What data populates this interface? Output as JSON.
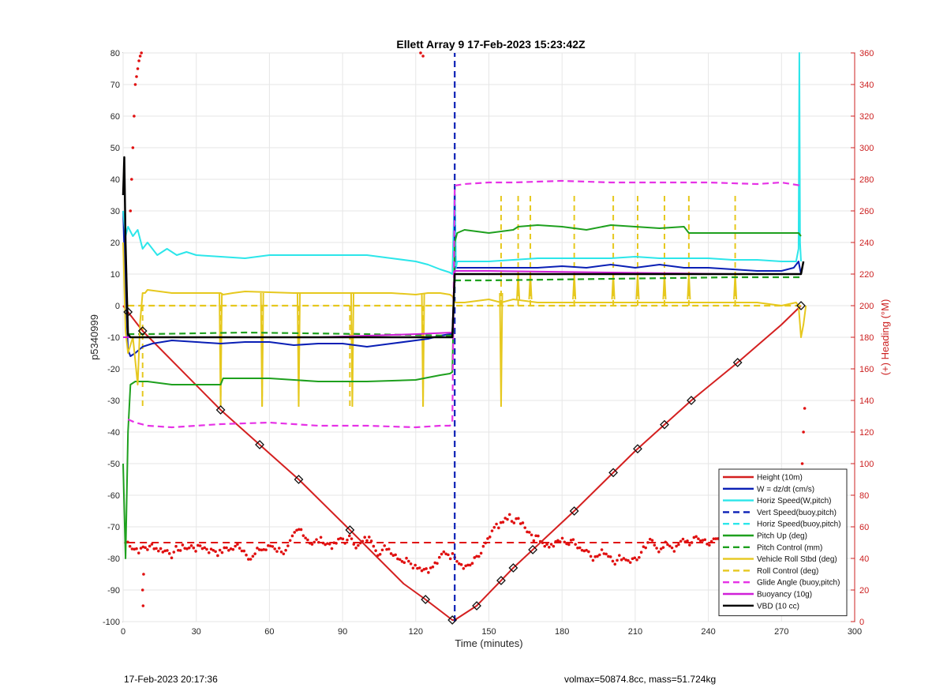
{
  "footer": {
    "left": "17-Feb-2023 20:17:36",
    "right": "volmax=50874.8cc, mass=51.724kg"
  },
  "chart_data": {
    "type": "line",
    "title": "Ellett Array 9 17-Feb-2023 15:23:42Z",
    "xlabel": "Time (minutes)",
    "ylabel": "p5340999",
    "y2label": "(+) Heading (°M)",
    "xlim": [
      0,
      300
    ],
    "ylim": [
      -100,
      80
    ],
    "y2lim": [
      0,
      360
    ],
    "xticks": [
      0,
      30,
      60,
      90,
      120,
      150,
      180,
      210,
      240,
      270,
      300
    ],
    "yticks": [
      -100,
      -90,
      -80,
      -70,
      -60,
      -50,
      -40,
      -30,
      -20,
      -10,
      0,
      10,
      20,
      30,
      40,
      50,
      60,
      70,
      80
    ],
    "y2ticks": [
      0,
      20,
      40,
      60,
      80,
      100,
      120,
      140,
      160,
      180,
      200,
      220,
      240,
      260,
      280,
      300,
      320,
      340,
      360
    ],
    "grid": true,
    "legend_position": "bottom-right",
    "colors": {
      "height": "#d42020",
      "w": "#0a1fb5",
      "horiz": "#2ce6ea",
      "pitch": "#1ea01e",
      "roll": "#e6c81e",
      "glide": "#e632e6",
      "buoy": "#d020d8",
      "vbd": "#000000",
      "heading": "#e01010"
    },
    "series": [
      {
        "name": "Height (10m)",
        "key": "height",
        "style": "solid",
        "width": 2,
        "x": [
          0,
          2,
          8,
          40,
          56,
          72,
          93,
          115,
          124,
          135,
          136,
          145,
          160,
          185,
          210,
          233,
          252,
          270,
          278
        ],
        "y": [
          0,
          -2,
          -8,
          -33,
          -44,
          -55,
          -71,
          -88,
          -93,
          -99.5,
          -99.5,
          -95,
          -83,
          -65,
          -46,
          -30,
          -18,
          -6,
          0
        ]
      },
      {
        "name": "W = dz/dt (cm/s)",
        "key": "w",
        "style": "solid",
        "width": 2,
        "x": [
          0,
          1,
          2,
          3,
          5,
          8,
          12,
          20,
          30,
          40,
          50,
          60,
          70,
          80,
          90,
          100,
          110,
          120,
          125,
          130,
          134,
          135,
          136,
          140,
          150,
          160,
          170,
          180,
          190,
          200,
          210,
          220,
          230,
          240,
          250,
          260,
          270,
          275,
          277,
          278
        ],
        "y": [
          30,
          5,
          -14,
          -16,
          -15,
          -13,
          -12,
          -11,
          -11.5,
          -12,
          -11.5,
          -11.5,
          -12.5,
          -12,
          -12,
          -13,
          -12,
          -11,
          -10.5,
          -9.5,
          -9,
          -9,
          12,
          12,
          12,
          12,
          12,
          12.5,
          12,
          13,
          12,
          13,
          12,
          12,
          11.5,
          11,
          11,
          12,
          14,
          10
        ]
      },
      {
        "name": "Horiz Speed(W,pitch)",
        "key": "horiz",
        "style": "solid",
        "width": 2,
        "x": [
          0,
          1,
          2,
          4,
          6,
          8,
          10,
          14,
          18,
          22,
          26,
          30,
          40,
          50,
          60,
          70,
          80,
          90,
          100,
          110,
          120,
          125,
          130,
          134,
          135,
          136,
          136.5,
          137,
          140,
          150,
          160,
          170,
          180,
          190,
          200,
          210,
          220,
          230,
          240,
          250,
          260,
          270,
          276,
          277,
          277.3,
          277.6,
          278
        ],
        "y": [
          30,
          22,
          25,
          22,
          24,
          18,
          20,
          16,
          18,
          16,
          17,
          16,
          15.5,
          15,
          16,
          16,
          16,
          16,
          16,
          15,
          14,
          13,
          11.5,
          10.5,
          10,
          38,
          12,
          14,
          14,
          14,
          14.5,
          15,
          15,
          15,
          15,
          15.5,
          15,
          15,
          15,
          14.5,
          14.5,
          14,
          14,
          18,
          80,
          20,
          14
        ]
      },
      {
        "name": "Vert Speed(buoy,pitch)",
        "key": "w",
        "style": "dashed",
        "width": 2.2,
        "x": [
          136,
          136
        ],
        "y": [
          -100,
          80
        ]
      },
      {
        "name": "Horiz Speed(buoy,pitch)",
        "key": "horiz",
        "style": "dashed",
        "width": 2.2,
        "x": [
          278,
          278
        ],
        "y": [
          80,
          80
        ]
      },
      {
        "name": "Pitch Up (deg)",
        "key": "pitch",
        "style": "solid",
        "width": 2,
        "x": [
          0,
          1,
          2,
          3,
          5,
          10,
          20,
          40,
          41,
          60,
          80,
          100,
          120,
          130,
          134,
          135,
          136,
          137,
          140,
          150,
          160,
          162,
          170,
          180,
          190,
          200,
          210,
          220,
          230,
          232,
          240,
          250,
          260,
          270,
          277,
          278
        ],
        "y": [
          -50,
          -80,
          -40,
          -25,
          -24,
          -24,
          -25,
          -25,
          -23,
          -23,
          -24,
          -24,
          -23.5,
          -22,
          -21.5,
          -21,
          20,
          23,
          24,
          23,
          24,
          25,
          25.5,
          25,
          24,
          25.5,
          25,
          24.5,
          25,
          23,
          23,
          23,
          23,
          23,
          23,
          22
        ]
      },
      {
        "name": "Pitch Control (mm)",
        "key": "pitch",
        "style": "dashed",
        "width": 2.2,
        "x": [
          2,
          10,
          50,
          100,
          134,
          135,
          136,
          150,
          200,
          250,
          278
        ],
        "y": [
          -9,
          -9,
          -8.5,
          -9,
          -9.5,
          -9.5,
          8,
          8,
          8.5,
          9,
          9
        ]
      },
      {
        "name": "Vehicle Roll Stbd (deg)",
        "key": "roll",
        "style": "solid",
        "width": 2,
        "x": [
          0,
          1,
          2,
          4,
          6,
          7,
          8,
          9,
          10,
          20,
          30,
          40,
          41,
          45,
          50,
          70,
          90,
          110,
          120,
          125,
          130,
          134,
          135,
          136,
          140,
          150,
          155,
          160,
          170,
          200,
          230,
          260,
          270,
          276,
          277,
          278,
          279,
          280
        ],
        "y": [
          20,
          -8,
          -15,
          -10,
          -25,
          -5,
          4,
          4,
          5,
          4,
          4,
          4,
          3.5,
          4,
          4.5,
          4,
          4,
          4,
          3.5,
          4,
          4,
          3.5,
          3,
          1,
          1,
          2,
          1,
          2,
          1,
          1,
          1,
          1,
          0,
          1,
          0,
          -10,
          -6,
          0
        ]
      },
      {
        "name": "Roll Control (deg)",
        "key": "roll",
        "style": "dashed",
        "width": 2.2,
        "x": [
          2,
          10,
          50,
          100,
          130,
          135,
          136,
          150,
          200,
          250,
          278
        ],
        "y": [
          0,
          0,
          0,
          0,
          0,
          0,
          0,
          0,
          0,
          0,
          0
        ]
      },
      {
        "name": "Glide Angle (buoy,pitch)",
        "key": "glide",
        "style": "dashed",
        "width": 2.2,
        "x": [
          2,
          5,
          10,
          20,
          30,
          40,
          60,
          80,
          100,
          120,
          130,
          134,
          135,
          136,
          140,
          150,
          160,
          180,
          200,
          220,
          240,
          260,
          270,
          278
        ],
        "y": [
          -36,
          -37,
          -38,
          -38.5,
          -38,
          -37.5,
          -37,
          -38,
          -38,
          -38.5,
          -38,
          -38,
          -37,
          38,
          38.5,
          39,
          39,
          39.5,
          39,
          39,
          39,
          38.5,
          39,
          38
        ]
      },
      {
        "name": "Buoyancy (10g)",
        "key": "buoy",
        "style": "solid",
        "width": 2,
        "x": [
          0,
          2,
          3,
          40,
          80,
          120,
          135,
          136,
          150,
          200,
          250,
          278
        ],
        "y": [
          -10,
          -10,
          -10,
          -10,
          -10,
          -9,
          -8.5,
          11,
          11,
          10.5,
          10,
          10
        ]
      },
      {
        "name": "VBD (10 cc)",
        "key": "vbd",
        "style": "solid",
        "width": 2.5,
        "x": [
          0,
          0.5,
          1,
          1.5,
          2,
          3,
          135,
          136,
          278,
          279
        ],
        "y": [
          35,
          47,
          20,
          5,
          -9,
          -10,
          -10,
          10,
          10,
          14
        ]
      }
    ],
    "roll_spikes_solid": [
      {
        "x": 40,
        "y": -35
      },
      {
        "x": 57,
        "y": -35
      },
      {
        "x": 72,
        "y": -35
      },
      {
        "x": 94,
        "y": -35
      },
      {
        "x": 123,
        "y": -35
      },
      {
        "x": 155,
        "y": -35
      }
    ],
    "roll_spikes_dashed": [
      {
        "x": 8,
        "y": -33
      },
      {
        "x": 40,
        "y": -33
      },
      {
        "x": 57,
        "y": -33
      },
      {
        "x": 72,
        "y": -33
      },
      {
        "x": 93,
        "y": -33
      },
      {
        "x": 123,
        "y": -33
      },
      {
        "x": 155,
        "y": 35
      },
      {
        "x": 162,
        "y": 35
      },
      {
        "x": 167,
        "y": 35
      },
      {
        "x": 185,
        "y": 35
      },
      {
        "x": 201,
        "y": 35
      },
      {
        "x": 211,
        "y": 35
      },
      {
        "x": 222,
        "y": 35
      },
      {
        "x": 232,
        "y": 35
      },
      {
        "x": 251,
        "y": 35
      }
    ],
    "heading_target": 50,
    "height_markers_x": [
      2,
      8,
      40,
      56,
      72,
      93,
      124,
      135,
      145,
      155,
      160,
      168,
      185,
      201,
      211,
      222,
      233,
      252,
      278
    ]
  }
}
